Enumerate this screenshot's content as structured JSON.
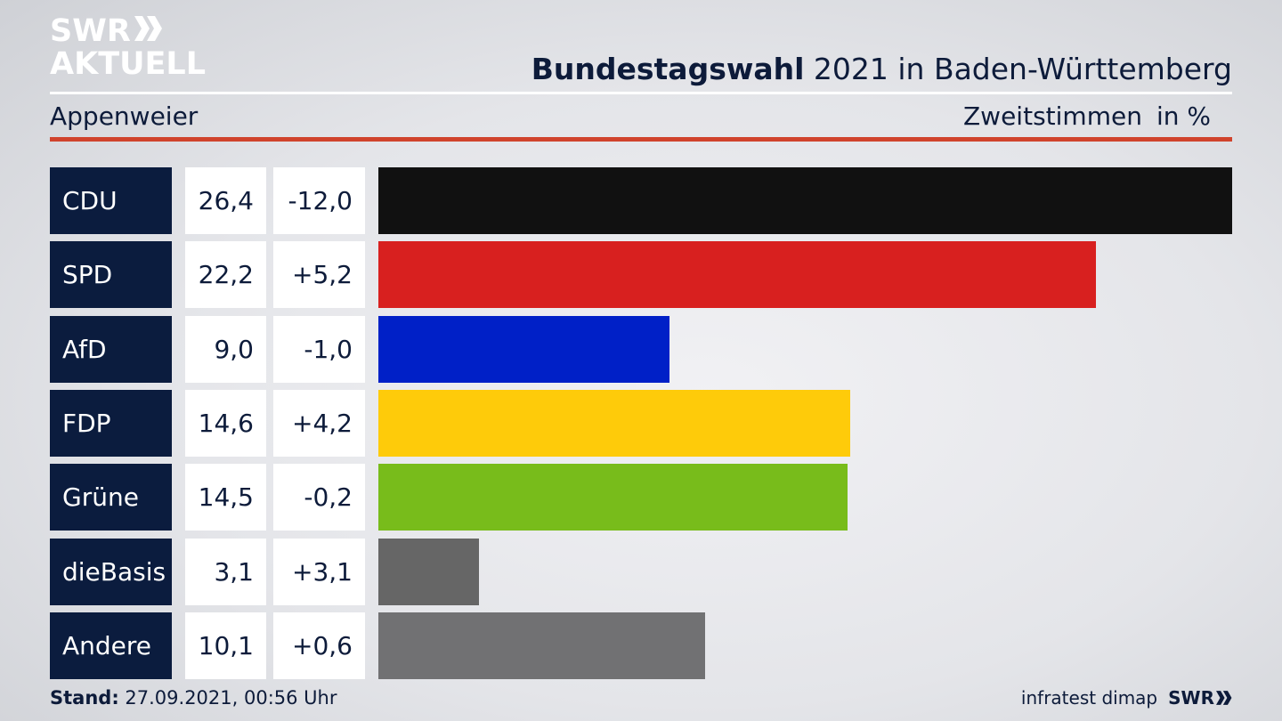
{
  "logo": {
    "line1": "SWR",
    "line2": "AKTUELL"
  },
  "header": {
    "title_bold": "Bundestagswahl",
    "title_rest": " 2021 in Baden-Württemberg",
    "region": "Appenweier",
    "metric": "Zweitstimmen",
    "unit": "in %"
  },
  "chart_data": {
    "type": "bar",
    "orientation": "horizontal",
    "categories": [
      "CDU",
      "SPD",
      "AfD",
      "FDP",
      "Grüne",
      "dieBasis",
      "Andere"
    ],
    "values": [
      26.4,
      22.2,
      9.0,
      14.6,
      14.5,
      3.1,
      10.1
    ],
    "value_labels": [
      "26,4",
      "22,2",
      "9,0",
      "14,6",
      "14,5",
      "3,1",
      "10,1"
    ],
    "diff_labels": [
      "-12,0",
      "+5,2",
      "-1,0",
      "+4,2",
      "-0,2",
      "+3,1",
      "+0,6"
    ],
    "colors": [
      "#111111",
      "#d8201f",
      "#0020c7",
      "#fecb0a",
      "#78bc1b",
      "#666666",
      "#717173"
    ]
  },
  "footer": {
    "stand_label": "Stand:",
    "stand_value": " 27.09.2021, 00:56 Uhr",
    "source": "infratest dimap",
    "brand": "SWR"
  }
}
